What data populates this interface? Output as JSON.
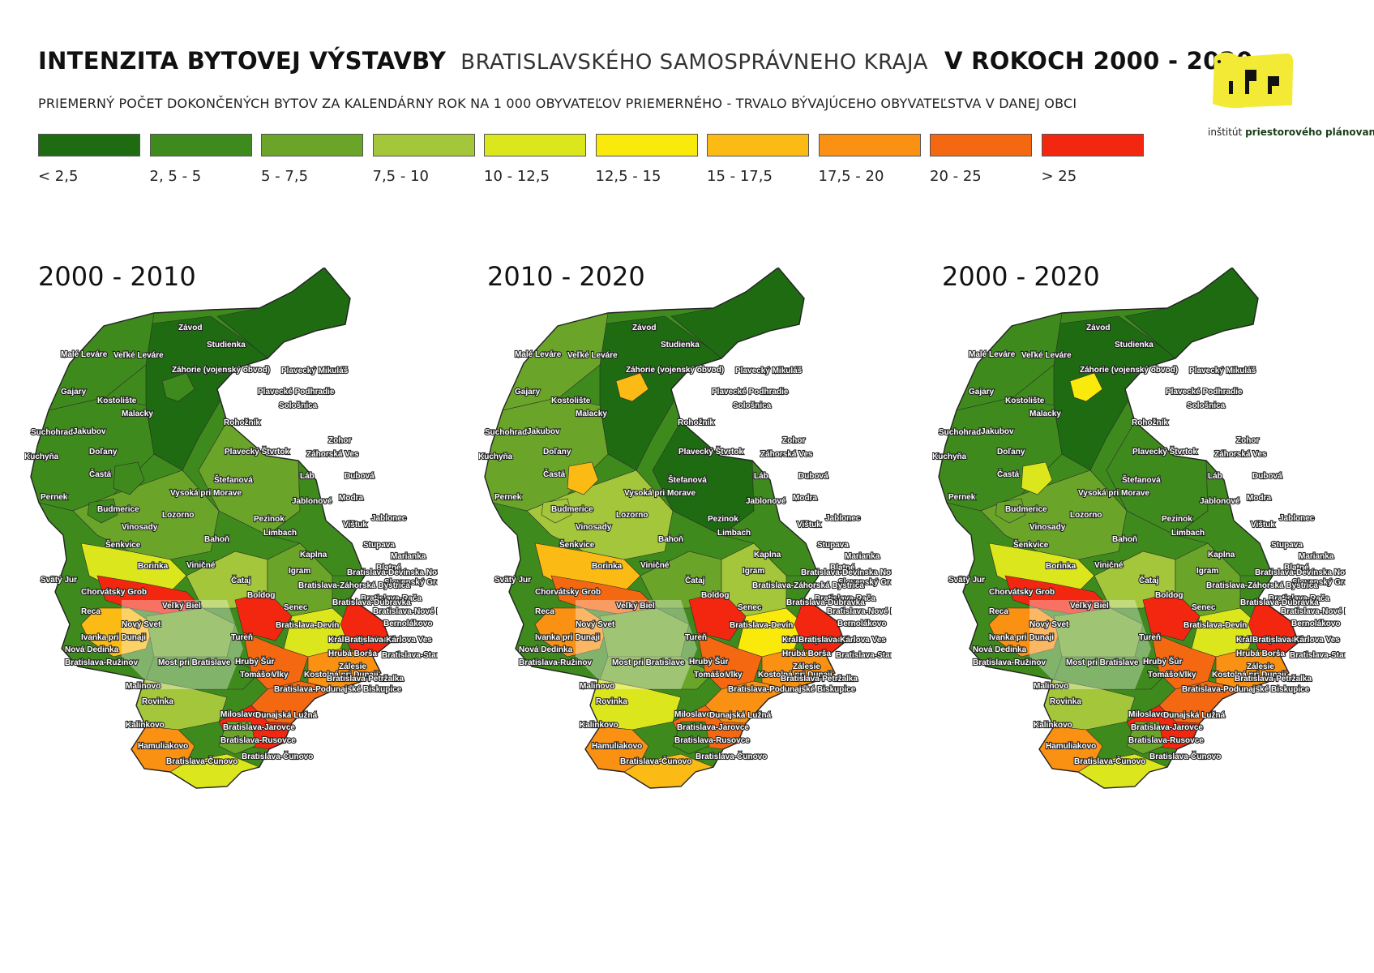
{
  "header": {
    "title_main": "INTENZITA BYTOVEJ VÝSTAVBY",
    "title_region": "BRATISLAVSKÉHO SAMOSPRÁVNEHO KRAJA",
    "title_years": "V ROKOCH 2000 - 2020",
    "subtitle": "PRIEMERNÝ POČET DOKONČENÝCH BYTOV ZA KALENDÁRNY ROK NA 1 000 OBYVATEĽOV PRIEMERNÉHO - TRVALO BÝVAJÚCEHO OBYVATEĽSTVA V DANEJ OBCI"
  },
  "logo": {
    "label_plain": "inštitút",
    "label_strong": "priestorového plánovania",
    "color": "#f2ea34"
  },
  "legend": [
    {
      "label": "< 2,5",
      "color": "#1e6b12"
    },
    {
      "label": "2, 5 - 5",
      "color": "#3f8a1d"
    },
    {
      "label": "5 - 7,5",
      "color": "#6aa52a"
    },
    {
      "label": "7,5 - 10",
      "color": "#a3c63a"
    },
    {
      "label": "10 - 12,5",
      "color": "#dce61c"
    },
    {
      "label": "12,5 - 15",
      "color": "#faea0c"
    },
    {
      "label": "15 - 17,5",
      "color": "#fbbb14"
    },
    {
      "label": "17,5 - 20",
      "color": "#fa9112"
    },
    {
      "label": "20 - 25",
      "color": "#f56812"
    },
    {
      "label": "> 25",
      "color": "#f3270f"
    }
  ],
  "maps": [
    {
      "title": "2000 - 2010"
    },
    {
      "title": "2010 - 2020"
    },
    {
      "title": "2000 - 2020"
    }
  ],
  "places": [
    "Závod",
    "Studienka",
    "Malé Leváre",
    "Veľké Leváre",
    "Záhorie (vojenský obvod)",
    "Plavecký Mikuláš",
    "Gajary",
    "Kostolište",
    "Plavecké Podhradie",
    "Malacky",
    "Sološnica",
    "Rohožník",
    "Suchohrad",
    "Jakubov",
    "Zohor",
    "Doľany",
    "Plavecký Štvrtok",
    "Kuchyňa",
    "Záhorská Ves",
    "Častá",
    "Láb",
    "Dubová",
    "Štefanová",
    "Pernek",
    "Vysoká pri Morave",
    "Jablonové",
    "Modra",
    "Budmerice",
    "Lozorno",
    "Pezinok",
    "Jablonec",
    "Vištuk",
    "Vinosady",
    "Limbach",
    "Bahoň",
    "Stupava",
    "Šenkvice",
    "Kaplna",
    "Marianka",
    "Borinka",
    "Viničné",
    "Igram",
    "Blatné",
    "Bratislava-Devínska Nová Ves",
    "Svätý Jur",
    "Čataj",
    "Slovenský Grob",
    "Bratislava-Záhorská Bystrica",
    "Chorvátsky Grob",
    "Boldog",
    "Bratislava-Rača",
    "Veľký Biel",
    "Senec",
    "Bratislava-Dúbravka",
    "Reca",
    "Bratislava-Nové Mesto",
    "Nový Svet",
    "Bernolákovo",
    "Bratislava-Devín",
    "Ivanka pri Dunaji",
    "Tureň",
    "Kráľová pri Senci",
    "Bratislava-Karlova Ves",
    "Nová Dedinka",
    "Hrubá Borša",
    "Bratislava-Staré Mesto",
    "Bratislava-Ružinov",
    "Most pri Bratislave",
    "Hrubý Šúr",
    "Zálesie",
    "Tomášov",
    "Vlky",
    "Kostolná pri Dunaji",
    "Bratislava-Petržalka",
    "Malinovo",
    "Bratislava-Podunajské Biskupice",
    "Rovinka",
    "Miloslavov",
    "Dunajská Lužná",
    "Bratislava-Jarovce",
    "Kalinkovo",
    "Bratislava-Rusovce",
    "Hamuliakovo",
    "Bratislava-Čunovo"
  ]
}
